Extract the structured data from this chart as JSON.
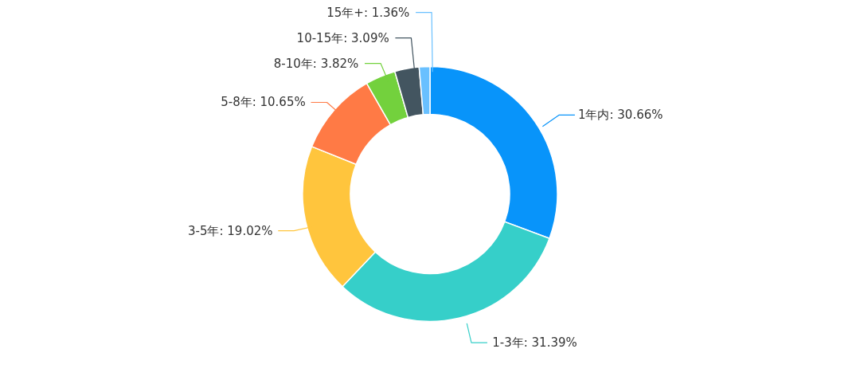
{
  "chart_data": {
    "type": "donut",
    "categories": [
      "1年内",
      "1-3年",
      "3-5年",
      "5-8年",
      "8-10年",
      "10-15年",
      "15年+"
    ],
    "values": [
      30.66,
      31.39,
      19.02,
      10.65,
      3.82,
      3.09,
      1.36
    ],
    "value_labels": [
      ": 30.66%",
      ": 31.39%",
      ": 19.02%",
      ": 10.65%",
      ": 3.82%",
      ": 3.09%",
      ": 1.36%"
    ],
    "colors": [
      "#0894fa",
      "#36cfc9",
      "#ffc53d",
      "#ff7a45",
      "#73d13d",
      "#435560",
      "#69c0ff"
    ]
  }
}
